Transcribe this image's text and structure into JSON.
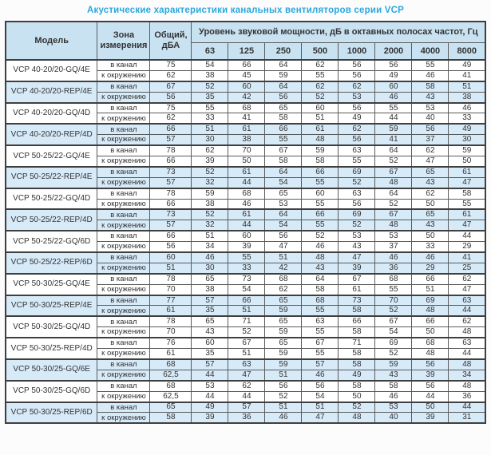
{
  "title": "Акустические характеристики канальных вентиляторов  серии VCP",
  "table": {
    "headers": {
      "model": "Модель",
      "zone": "Зона\nизмерения",
      "total": "Общий,\nдБА",
      "power": "Уровень звуковой мощности, дБ в октавных полосах частот, Гц",
      "frequencies": [
        "63",
        "125",
        "250",
        "500",
        "1000",
        "2000",
        "4000",
        "8000"
      ]
    },
    "accent_colors": {
      "title_blue": "#2aa7de",
      "header_bg": "#c9e2f2",
      "shaded_row_bg": "#d7eaf8"
    },
    "groups": [
      {
        "model": "VCP 40-20/20-GQ/4E",
        "shaded": false,
        "rows": [
          {
            "zone": "в канал",
            "total": "75",
            "values": [
              54,
              66,
              64,
              62,
              56,
              56,
              55,
              49
            ]
          },
          {
            "zone": "к окружению",
            "total": "62",
            "values": [
              38,
              45,
              59,
              55,
              56,
              49,
              46,
              41
            ]
          }
        ]
      },
      {
        "model": "VCP 40-20/20-REP/4E",
        "shaded": true,
        "rows": [
          {
            "zone": "в канал",
            "total": "67",
            "values": [
              52,
              60,
              64,
              62,
              62,
              60,
              58,
              51
            ]
          },
          {
            "zone": "к окружению",
            "total": "56",
            "values": [
              35,
              42,
              56,
              52,
              53,
              46,
              43,
              38
            ]
          }
        ]
      },
      {
        "model": "VCP 40-20/20-GQ/4D",
        "shaded": false,
        "rows": [
          {
            "zone": "в канал",
            "total": "75",
            "values": [
              55,
              68,
              65,
              60,
              56,
              55,
              53,
              46
            ]
          },
          {
            "zone": "к окружению",
            "total": "62",
            "values": [
              33,
              41,
              58,
              51,
              49,
              44,
              40,
              33
            ]
          }
        ]
      },
      {
        "model": "VCP 40-20/20-REP/4D",
        "shaded": true,
        "rows": [
          {
            "zone": "в канал",
            "total": "66",
            "values": [
              51,
              61,
              66,
              61,
              62,
              59,
              56,
              49
            ]
          },
          {
            "zone": "к окружению",
            "total": "57",
            "values": [
              30,
              38,
              55,
              48,
              56,
              41,
              37,
              30
            ]
          }
        ]
      },
      {
        "model": "VCP 50-25/22-GQ/4E",
        "shaded": false,
        "rows": [
          {
            "zone": "в канал",
            "total": "78",
            "values": [
              62,
              70,
              67,
              59,
              63,
              64,
              62,
              59
            ]
          },
          {
            "zone": "к окружению",
            "total": "66",
            "values": [
              39,
              50,
              58,
              58,
              55,
              52,
              47,
              50
            ]
          }
        ]
      },
      {
        "model": "VCP 50-25/22-REP/4E",
        "shaded": true,
        "rows": [
          {
            "zone": "в канал",
            "total": "73",
            "values": [
              52,
              61,
              64,
              66,
              69,
              67,
              65,
              61
            ]
          },
          {
            "zone": "к окружению",
            "total": "57",
            "values": [
              32,
              44,
              54,
              55,
              52,
              48,
              43,
              47
            ]
          }
        ]
      },
      {
        "model": "VCP 50-25/22-GQ/4D",
        "shaded": false,
        "rows": [
          {
            "zone": "в канал",
            "total": "78",
            "values": [
              59,
              68,
              65,
              60,
              63,
              64,
              62,
              58
            ]
          },
          {
            "zone": "к окружению",
            "total": "66",
            "values": [
              38,
              46,
              53,
              55,
              56,
              52,
              50,
              55
            ]
          }
        ]
      },
      {
        "model": "VCP 50-25/22-REP/4D",
        "shaded": true,
        "rows": [
          {
            "zone": "в канал",
            "total": "73",
            "values": [
              52,
              61,
              64,
              66,
              69,
              67,
              65,
              61
            ]
          },
          {
            "zone": "к окружению",
            "total": "57",
            "values": [
              32,
              44,
              54,
              55,
              52,
              48,
              43,
              47
            ]
          }
        ]
      },
      {
        "model": "VCP 50-25/22-GQ/6D",
        "shaded": false,
        "rows": [
          {
            "zone": "в канал",
            "total": "66",
            "values": [
              51,
              60,
              56,
              52,
              53,
              53,
              50,
              44
            ]
          },
          {
            "zone": "к окружению",
            "total": "56",
            "values": [
              34,
              39,
              47,
              46,
              43,
              37,
              33,
              29
            ]
          }
        ]
      },
      {
        "model": "VCP 50-25/22-REP/6D",
        "shaded": true,
        "rows": [
          {
            "zone": "в канал",
            "total": "60",
            "values": [
              46,
              55,
              51,
              48,
              47,
              46,
              46,
              41
            ]
          },
          {
            "zone": "к окружению",
            "total": "51",
            "values": [
              30,
              33,
              42,
              43,
              39,
              36,
              29,
              25
            ]
          }
        ]
      },
      {
        "model": "VCP 50-30/25-GQ/4E",
        "shaded": false,
        "rows": [
          {
            "zone": "в канал",
            "total": "78",
            "values": [
              65,
              73,
              68,
              64,
              67,
              68,
              66,
              62
            ]
          },
          {
            "zone": "к окружению",
            "total": "70",
            "values": [
              38,
              54,
              62,
              58,
              61,
              55,
              51,
              47
            ]
          }
        ]
      },
      {
        "model": "VCP 50-30/25-REP/4E",
        "shaded": true,
        "rows": [
          {
            "zone": "в канал",
            "total": "77",
            "values": [
              57,
              66,
              65,
              68,
              73,
              70,
              69,
              63
            ]
          },
          {
            "zone": "к окружению",
            "total": "61",
            "values": [
              35,
              51,
              59,
              55,
              58,
              52,
              48,
              44
            ]
          }
        ]
      },
      {
        "model": "VCP 50-30/25-GQ/4D",
        "shaded": false,
        "rows": [
          {
            "zone": "в канал",
            "total": "78",
            "values": [
              65,
              71,
              65,
              63,
              66,
              67,
              66,
              62
            ]
          },
          {
            "zone": "к окружению",
            "total": "70",
            "values": [
              43,
              52,
              59,
              55,
              58,
              54,
              50,
              48
            ]
          }
        ]
      },
      {
        "model": "VCP 50-30/25-REP/4D",
        "shaded": false,
        "rows": [
          {
            "zone": "в канал",
            "total": "76",
            "values": [
              60,
              67,
              65,
              67,
              71,
              69,
              68,
              63
            ]
          },
          {
            "zone": "к окружению",
            "total": "61",
            "values": [
              35,
              51,
              59,
              55,
              58,
              52,
              48,
              44
            ]
          }
        ]
      },
      {
        "model": "VCP 50-30/25-GQ/6E",
        "shaded": true,
        "rows": [
          {
            "zone": "в канал",
            "total": "68",
            "values": [
              57,
              63,
              59,
              57,
              58,
              59,
              56,
              48
            ]
          },
          {
            "zone": "к окружению",
            "total": "62,5",
            "values": [
              44,
              47,
              51,
              46,
              49,
              43,
              39,
              34
            ]
          }
        ]
      },
      {
        "model": "VCP 50-30/25-GQ/6D",
        "shaded": false,
        "rows": [
          {
            "zone": "в канал",
            "total": "68",
            "values": [
              53,
              62,
              56,
              56,
              58,
              58,
              56,
              48
            ]
          },
          {
            "zone": "к окружению",
            "total": "62,5",
            "values": [
              44,
              44,
              52,
              54,
              50,
              46,
              44,
              36
            ]
          }
        ]
      },
      {
        "model": "VCP 50-30/25-REP/6D",
        "shaded": true,
        "rows": [
          {
            "zone": "в канал",
            "total": "65",
            "values": [
              49,
              57,
              51,
              51,
              52,
              53,
              50,
              44
            ]
          },
          {
            "zone": "к окружению",
            "total": "58",
            "values": [
              39,
              36,
              46,
              47,
              48,
              40,
              39,
              31
            ]
          }
        ]
      }
    ]
  }
}
